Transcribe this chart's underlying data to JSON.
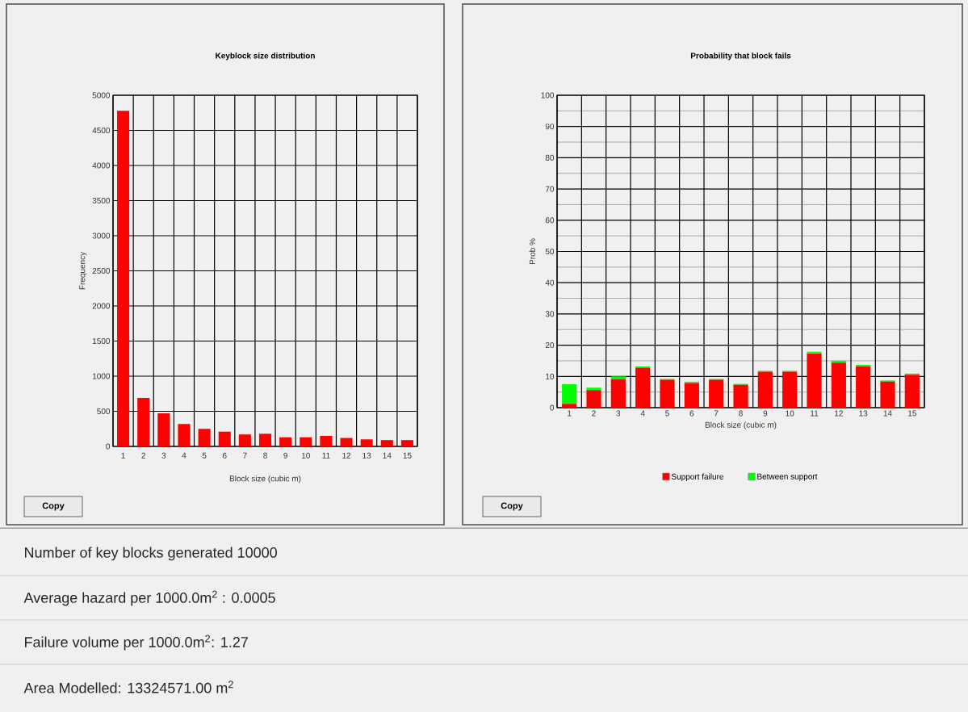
{
  "chart_data": [
    {
      "type": "bar",
      "title": "Keyblock size distribution",
      "xlabel": "Block size (cubic m)",
      "ylabel": "Frequency",
      "categories": [
        "1",
        "2",
        "3",
        "4",
        "5",
        "6",
        "7",
        "8",
        "9",
        "10",
        "11",
        "12",
        "13",
        "14",
        "15"
      ],
      "values": [
        4780,
        690,
        470,
        320,
        250,
        210,
        170,
        180,
        130,
        130,
        150,
        120,
        100,
        90,
        90
      ],
      "color": "#ff0000",
      "ylim": [
        0,
        5000
      ],
      "yticks": [
        0,
        500,
        1000,
        1500,
        2000,
        2500,
        3000,
        3500,
        4000,
        4500,
        5000
      ],
      "grid": true,
      "annotations": [
        "Copy"
      ]
    },
    {
      "type": "bar",
      "title": "Probability that block fails",
      "xlabel": "Block size (cubic m)",
      "ylabel": "Prob %",
      "categories": [
        "1",
        "2",
        "3",
        "4",
        "5",
        "6",
        "7",
        "8",
        "9",
        "10",
        "11",
        "12",
        "13",
        "14",
        "15"
      ],
      "stacked": true,
      "series": [
        {
          "name": "Support failure",
          "color": "#ff0000",
          "values": [
            1.2,
            5.6,
            9.2,
            12.8,
            8.9,
            7.9,
            8.9,
            7.3,
            11.5,
            11.5,
            17.4,
            14.4,
            13.2,
            8.3,
            10.5
          ]
        },
        {
          "name": "Between support",
          "color": "#00ff00",
          "values": [
            6.3,
            0.8,
            0.8,
            0.4,
            0.3,
            0.4,
            0.3,
            0.3,
            0.3,
            0.3,
            0.5,
            0.6,
            0.5,
            0.4,
            0.4
          ]
        }
      ],
      "ylim": [
        0,
        100
      ],
      "yticks": [
        0,
        10,
        20,
        30,
        40,
        50,
        60,
        70,
        80,
        90,
        100
      ],
      "grid": true,
      "legend": "bottom",
      "annotations": [
        "Copy"
      ]
    },
    {
      "type": "other",
      "annotations": [
        "Number of key blocks generated 10000",
        "Average hazard per 1000.0m$^{2}$ : 0.0005",
        "Failure volume per 1000.0m$^{2}$: 1.27",
        "Area Modelled: 13324571.00 m$^{2}$"
      ]
    }
  ]
}
